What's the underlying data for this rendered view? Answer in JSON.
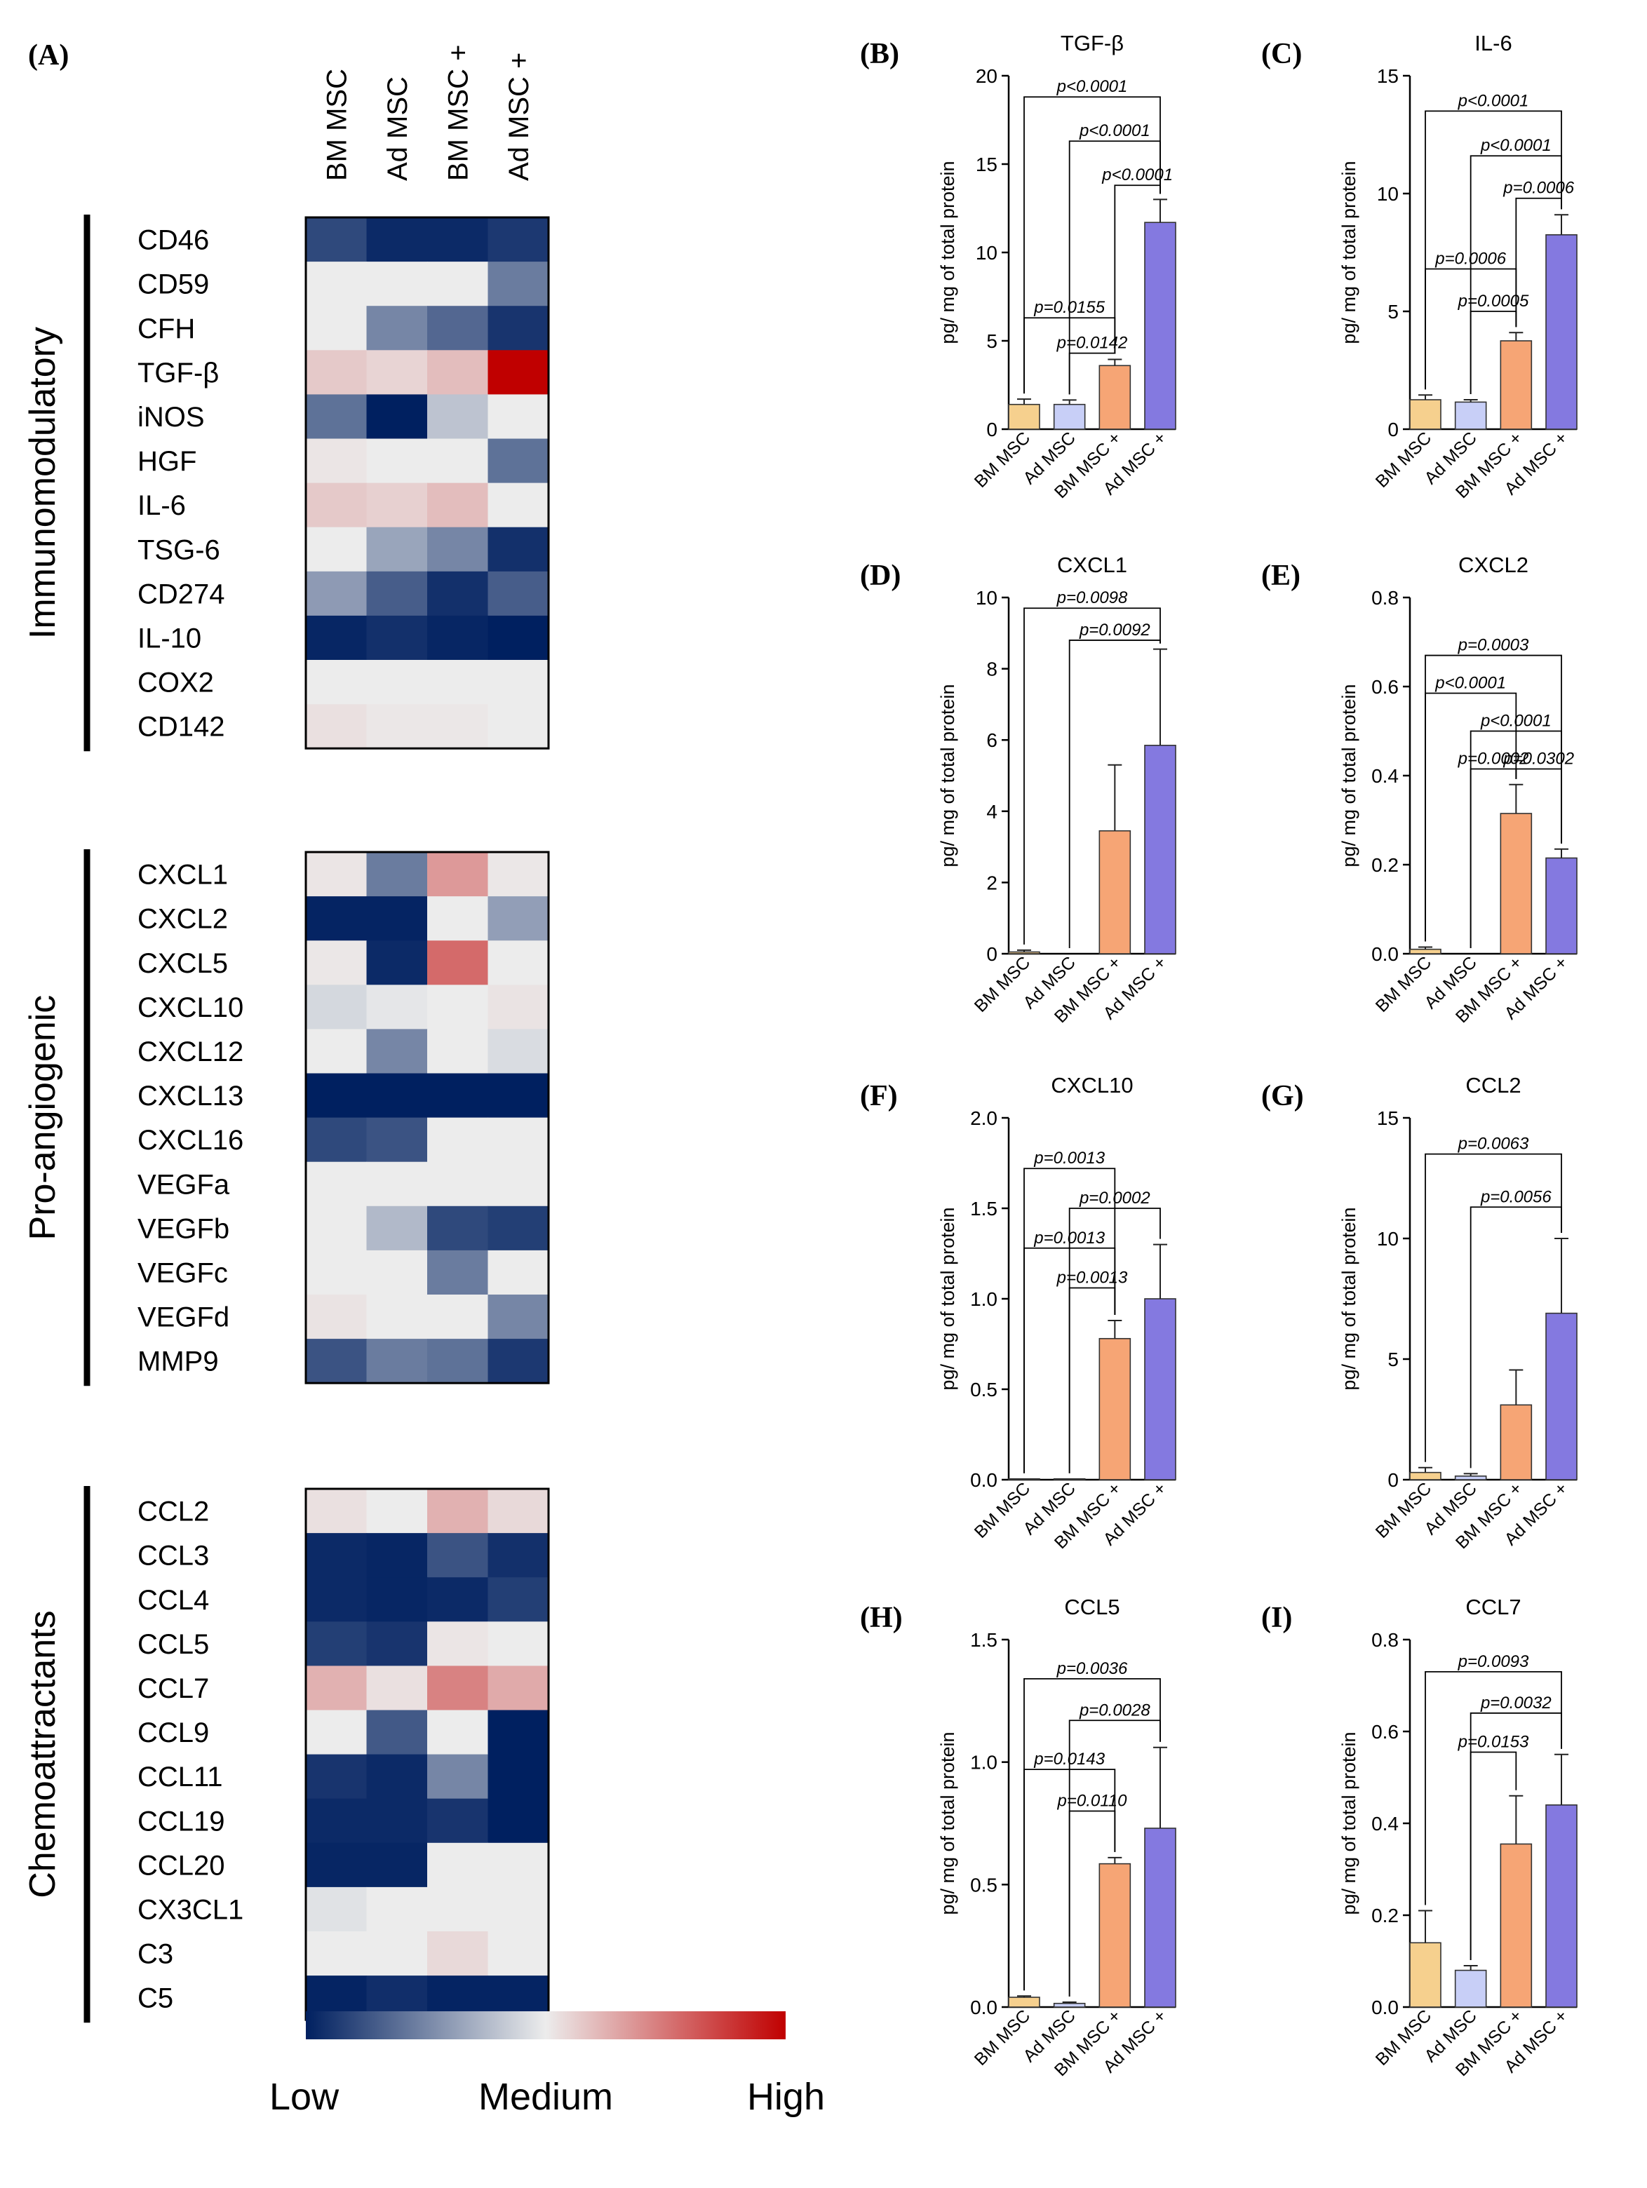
{
  "heatmap": {
    "panel_label": "(A)",
    "columns": [
      "BM MSC",
      "Ad MSC",
      "BM MSC +",
      "Ad MSC +"
    ],
    "color_scale": {
      "low": "#002060",
      "mid": "#ececec",
      "high": "#c00000",
      "labels": [
        "Low",
        "Medium",
        "High"
      ]
    },
    "groups": [
      {
        "name": "Immunomodulatory",
        "rows": [
          {
            "gene": "CD46",
            "values": [
              -0.8,
              -0.95,
              -0.95,
              -0.88
            ]
          },
          {
            "gene": "CD59",
            "values": [
              0.0,
              0.0,
              0.0,
              -0.55
            ]
          },
          {
            "gene": "CFH",
            "values": [
              0.0,
              -0.5,
              -0.65,
              -0.9
            ]
          },
          {
            "gene": "TGF-β",
            "values": [
              0.15,
              0.1,
              0.2,
              1.0
            ]
          },
          {
            "gene": "iNOS",
            "values": [
              -0.6,
              -1.0,
              -0.2,
              0.0
            ]
          },
          {
            "gene": "HGF",
            "values": [
              0.03,
              0.0,
              0.0,
              -0.6
            ]
          },
          {
            "gene": "IL-6",
            "values": [
              0.15,
              0.12,
              0.2,
              0.0
            ]
          },
          {
            "gene": "TSG-6",
            "values": [
              0.0,
              -0.35,
              -0.5,
              -0.92
            ]
          },
          {
            "gene": "CD274",
            "values": [
              -0.4,
              -0.7,
              -0.92,
              -0.7
            ]
          },
          {
            "gene": "IL-10",
            "values": [
              -0.97,
              -0.92,
              -0.97,
              -1.0
            ]
          },
          {
            "gene": "COX2",
            "values": [
              0.0,
              0.0,
              0.0,
              0.0
            ]
          },
          {
            "gene": "CD142",
            "values": [
              0.05,
              0.02,
              0.02,
              0.0
            ]
          }
        ]
      },
      {
        "name": "Pro-angiogenic",
        "rows": [
          {
            "gene": "CXCL1",
            "values": [
              0.03,
              -0.55,
              0.35,
              0.02
            ]
          },
          {
            "gene": "CXCL2",
            "values": [
              -0.98,
              -0.98,
              0.0,
              -0.38
            ]
          },
          {
            "gene": "CXCL5",
            "values": [
              0.02,
              -0.95,
              0.55,
              0.0
            ]
          },
          {
            "gene": "CXCL10",
            "values": [
              -0.1,
              -0.03,
              0.0,
              0.04
            ]
          },
          {
            "gene": "CXCL12",
            "values": [
              0.0,
              -0.5,
              0.0,
              -0.08
            ]
          },
          {
            "gene": "CXCL13",
            "values": [
              -1.0,
              -1.0,
              -1.0,
              -1.0
            ]
          },
          {
            "gene": "CXCL16",
            "values": [
              -0.8,
              -0.75,
              0.0,
              0.0
            ]
          },
          {
            "gene": "VEGFa",
            "values": [
              0.0,
              0.0,
              0.0,
              0.0
            ]
          },
          {
            "gene": "VEGFb",
            "values": [
              0.0,
              -0.25,
              -0.8,
              -0.85
            ]
          },
          {
            "gene": "VEGFc",
            "values": [
              0.0,
              0.0,
              -0.55,
              0.0
            ]
          },
          {
            "gene": "VEGFd",
            "values": [
              0.04,
              0.0,
              0.0,
              -0.5
            ]
          },
          {
            "gene": "MMP9",
            "values": [
              -0.75,
              -0.55,
              -0.6,
              -0.88
            ]
          }
        ]
      },
      {
        "name": "Chemoattractants",
        "rows": [
          {
            "gene": "CCL2",
            "values": [
              0.05,
              0.0,
              0.25,
              0.08
            ]
          },
          {
            "gene": "CCL3",
            "values": [
              -0.95,
              -0.97,
              -0.75,
              -0.92
            ]
          },
          {
            "gene": "CCL4",
            "values": [
              -0.95,
              -0.97,
              -0.95,
              -0.85
            ]
          },
          {
            "gene": "CCL5",
            "values": [
              -0.85,
              -0.9,
              0.03,
              0.0
            ]
          },
          {
            "gene": "CCL7",
            "values": [
              0.25,
              0.05,
              0.45,
              0.28
            ]
          },
          {
            "gene": "CCL9",
            "values": [
              0.0,
              -0.72,
              0.0,
              -1.0
            ]
          },
          {
            "gene": "CCL11",
            "values": [
              -0.9,
              -0.95,
              -0.5,
              -1.0
            ]
          },
          {
            "gene": "CCL19",
            "values": [
              -0.95,
              -0.95,
              -0.9,
              -1.0
            ]
          },
          {
            "gene": "CCL20",
            "values": [
              -0.97,
              -0.97,
              0.0,
              0.0
            ]
          },
          {
            "gene": "CX3CL1",
            "values": [
              -0.05,
              0.0,
              0.0,
              0.0
            ]
          },
          {
            "gene": "C3",
            "values": [
              0.0,
              0.0,
              0.08,
              0.0
            ]
          },
          {
            "gene": "C5",
            "values": [
              -0.98,
              -0.93,
              -0.98,
              -0.98
            ]
          }
        ]
      }
    ]
  },
  "chart_data": [
    {
      "type": "bar",
      "panel": "(B)",
      "title": "TGF-β",
      "ylabel": "pg/ mg of total protein",
      "categories": [
        "BM MSC",
        "Ad MSC",
        "BM MSC +",
        "Ad MSC +"
      ],
      "values": [
        1.4,
        1.4,
        3.6,
        11.7
      ],
      "errors": [
        0.3,
        0.25,
        0.35,
        1.3
      ],
      "ylim": [
        0,
        20
      ],
      "yticks": [
        "0",
        "5",
        "10",
        "15",
        "20"
      ],
      "ytick_values": [
        0,
        5,
        10,
        15,
        20
      ],
      "brackets": [
        {
          "from": 0,
          "to": 3,
          "label": "p<0.0001",
          "y": 18.8
        },
        {
          "from": 1,
          "to": 3,
          "label": "p<0.0001",
          "y": 16.3
        },
        {
          "from": 2,
          "to": 3,
          "label": "p<0.0001",
          "y": 13.8
        },
        {
          "from": 0,
          "to": 2,
          "label": "p=0.0155",
          "y": 6.3
        },
        {
          "from": 1,
          "to": 2,
          "label": "p=0.0142",
          "y": 4.3
        }
      ]
    },
    {
      "type": "bar",
      "panel": "(C)",
      "title": "IL-6",
      "ylabel": "pg/ mg of total protein",
      "categories": [
        "BM MSC",
        "Ad MSC",
        "BM MSC +",
        "Ad MSC +"
      ],
      "values": [
        1.25,
        1.15,
        3.75,
        8.25
      ],
      "errors": [
        0.2,
        0.1,
        0.35,
        0.85
      ],
      "ylim": [
        0,
        15
      ],
      "yticks": [
        "0",
        "5",
        "10",
        "15"
      ],
      "ytick_values": [
        0,
        5,
        10,
        15
      ],
      "brackets": [
        {
          "from": 0,
          "to": 3,
          "label": "p<0.0001",
          "y": 13.5
        },
        {
          "from": 1,
          "to": 3,
          "label": "p<0.0001",
          "y": 11.6
        },
        {
          "from": 2,
          "to": 3,
          "label": "p=0.0006",
          "y": 9.8
        },
        {
          "from": 0,
          "to": 2,
          "label": "p=0.0006",
          "y": 6.8
        },
        {
          "from": 1,
          "to": 2,
          "label": "p=0.0005",
          "y": 5.0
        }
      ]
    },
    {
      "type": "bar",
      "panel": "(D)",
      "title": "CXCL1",
      "ylabel": "pg/ mg of total protein",
      "categories": [
        "BM MSC",
        "Ad MSC",
        "BM MSC +",
        "Ad MSC +"
      ],
      "values": [
        0.05,
        0.0,
        3.45,
        5.85
      ],
      "errors": [
        0.05,
        0.0,
        1.85,
        2.7
      ],
      "ylim": [
        0,
        10
      ],
      "yticks": [
        "0",
        "2",
        "4",
        "6",
        "8",
        "10"
      ],
      "ytick_values": [
        0,
        2,
        4,
        6,
        8,
        10
      ],
      "brackets": [
        {
          "from": 0,
          "to": 3,
          "label": "p=0.0098",
          "y": 9.7
        },
        {
          "from": 1,
          "to": 3,
          "label": "p=0.0092",
          "y": 8.8
        }
      ]
    },
    {
      "type": "bar",
      "panel": "(E)",
      "title": "CXCL2",
      "ylabel": "pg/ mg of total protein",
      "categories": [
        "BM MSC",
        "Ad MSC",
        "BM MSC +",
        "Ad MSC +"
      ],
      "values": [
        0.01,
        0.0,
        0.315,
        0.215
      ],
      "errors": [
        0.005,
        0.0,
        0.065,
        0.02
      ],
      "ylim": [
        0,
        0.8
      ],
      "yticks": [
        "0.0",
        "0.2",
        "0.4",
        "0.6",
        "0.8"
      ],
      "ytick_values": [
        0,
        0.2,
        0.4,
        0.6,
        0.8
      ],
      "brackets": [
        {
          "from": 0,
          "to": 3,
          "label": "p=0.0003",
          "y": 0.67
        },
        {
          "from": 0,
          "to": 2,
          "label": "p<0.0001",
          "y": 0.585
        },
        {
          "from": 1,
          "to": 3,
          "label": "p<0.0001",
          "y": 0.5
        },
        {
          "from": 1,
          "to": 2,
          "label": "p=0.0002",
          "y": 0.415
        },
        {
          "from": 2,
          "to": 3,
          "label": "p=0.0302",
          "y": 0.415
        }
      ]
    },
    {
      "type": "bar",
      "panel": "(F)",
      "title": "CXCL10",
      "ylabel": "pg/ mg of total protein",
      "categories": [
        "BM MSC",
        "Ad MSC",
        "BM MSC +",
        "Ad MSC +"
      ],
      "values": [
        0.005,
        0.005,
        0.78,
        1.0
      ],
      "errors": [
        0.0,
        0.0,
        0.1,
        0.3
      ],
      "ylim": [
        0,
        2.0
      ],
      "yticks": [
        "0.0",
        "0.5",
        "1.0",
        "1.5",
        "2.0"
      ],
      "ytick_values": [
        0,
        0.5,
        1.0,
        1.5,
        2.0
      ],
      "brackets": [
        {
          "from": 0,
          "to": 2,
          "label": "p=0.0013",
          "y": 1.72
        },
        {
          "from": 1,
          "to": 3,
          "label": "p=0.0002",
          "y": 1.5
        },
        {
          "from": 0,
          "to": 2,
          "label": "p=0.0013",
          "y": 1.28
        },
        {
          "from": 1,
          "to": 2,
          "label": "p=0.0013",
          "y": 1.06
        }
      ]
    },
    {
      "type": "bar",
      "panel": "(G)",
      "title": "CCL2",
      "ylabel": "pg/ mg of total protein",
      "categories": [
        "BM MSC",
        "Ad MSC",
        "BM MSC +",
        "Ad MSC +"
      ],
      "values": [
        0.3,
        0.15,
        3.1,
        6.9
      ],
      "errors": [
        0.2,
        0.1,
        1.45,
        3.1
      ],
      "ylim": [
        0,
        15
      ],
      "yticks": [
        "0",
        "5",
        "10",
        "15"
      ],
      "ytick_values": [
        0,
        5,
        10,
        15
      ],
      "brackets": [
        {
          "from": 0,
          "to": 3,
          "label": "p=0.0063",
          "y": 13.5
        },
        {
          "from": 1,
          "to": 3,
          "label": "p=0.0056",
          "y": 11.3
        }
      ]
    },
    {
      "type": "bar",
      "panel": "(H)",
      "title": "CCL5",
      "ylabel": "pg/ mg of total protein",
      "categories": [
        "BM MSC",
        "Ad MSC",
        "BM MSC +",
        "Ad MSC +"
      ],
      "values": [
        0.04,
        0.015,
        0.585,
        0.73
      ],
      "errors": [
        0.005,
        0.005,
        0.025,
        0.33
      ],
      "ylim": [
        0,
        1.5
      ],
      "yticks": [
        "0.0",
        "0.5",
        "1.0",
        "1.5"
      ],
      "ytick_values": [
        0,
        0.5,
        1.0,
        1.5
      ],
      "brackets": [
        {
          "from": 0,
          "to": 3,
          "label": "p=0.0036",
          "y": 1.34
        },
        {
          "from": 1,
          "to": 3,
          "label": "p=0.0028",
          "y": 1.17
        },
        {
          "from": 0,
          "to": 2,
          "label": "p=0.0143",
          "y": 0.97
        },
        {
          "from": 1,
          "to": 2,
          "label": "p=0.0110",
          "y": 0.8
        }
      ]
    },
    {
      "type": "bar",
      "panel": "(I)",
      "title": "CCL7",
      "ylabel": "pg/ mg of total protein",
      "categories": [
        "BM MSC",
        "Ad MSC",
        "BM MSC +",
        "Ad MSC +"
      ],
      "values": [
        0.14,
        0.08,
        0.355,
        0.44
      ],
      "errors": [
        0.07,
        0.01,
        0.105,
        0.11
      ],
      "ylim": [
        0,
        0.8
      ],
      "yticks": [
        "0.0",
        "0.2",
        "0.4",
        "0.6",
        "0.8"
      ],
      "ytick_values": [
        0,
        0.2,
        0.4,
        0.6,
        0.8
      ],
      "brackets": [
        {
          "from": 0,
          "to": 3,
          "label": "p=0.0093",
          "y": 0.73
        },
        {
          "from": 1,
          "to": 3,
          "label": "p=0.0032",
          "y": 0.64
        },
        {
          "from": 1,
          "to": 2,
          "label": "p=0.0153",
          "y": 0.555
        }
      ]
    }
  ],
  "bar_colors": {
    "fills": [
      "#f6d08e",
      "#c8cff7",
      "#f6a575",
      "#8479e0"
    ],
    "strokes": [
      "#333333",
      "#333333",
      "#333333",
      "#333333"
    ]
  }
}
